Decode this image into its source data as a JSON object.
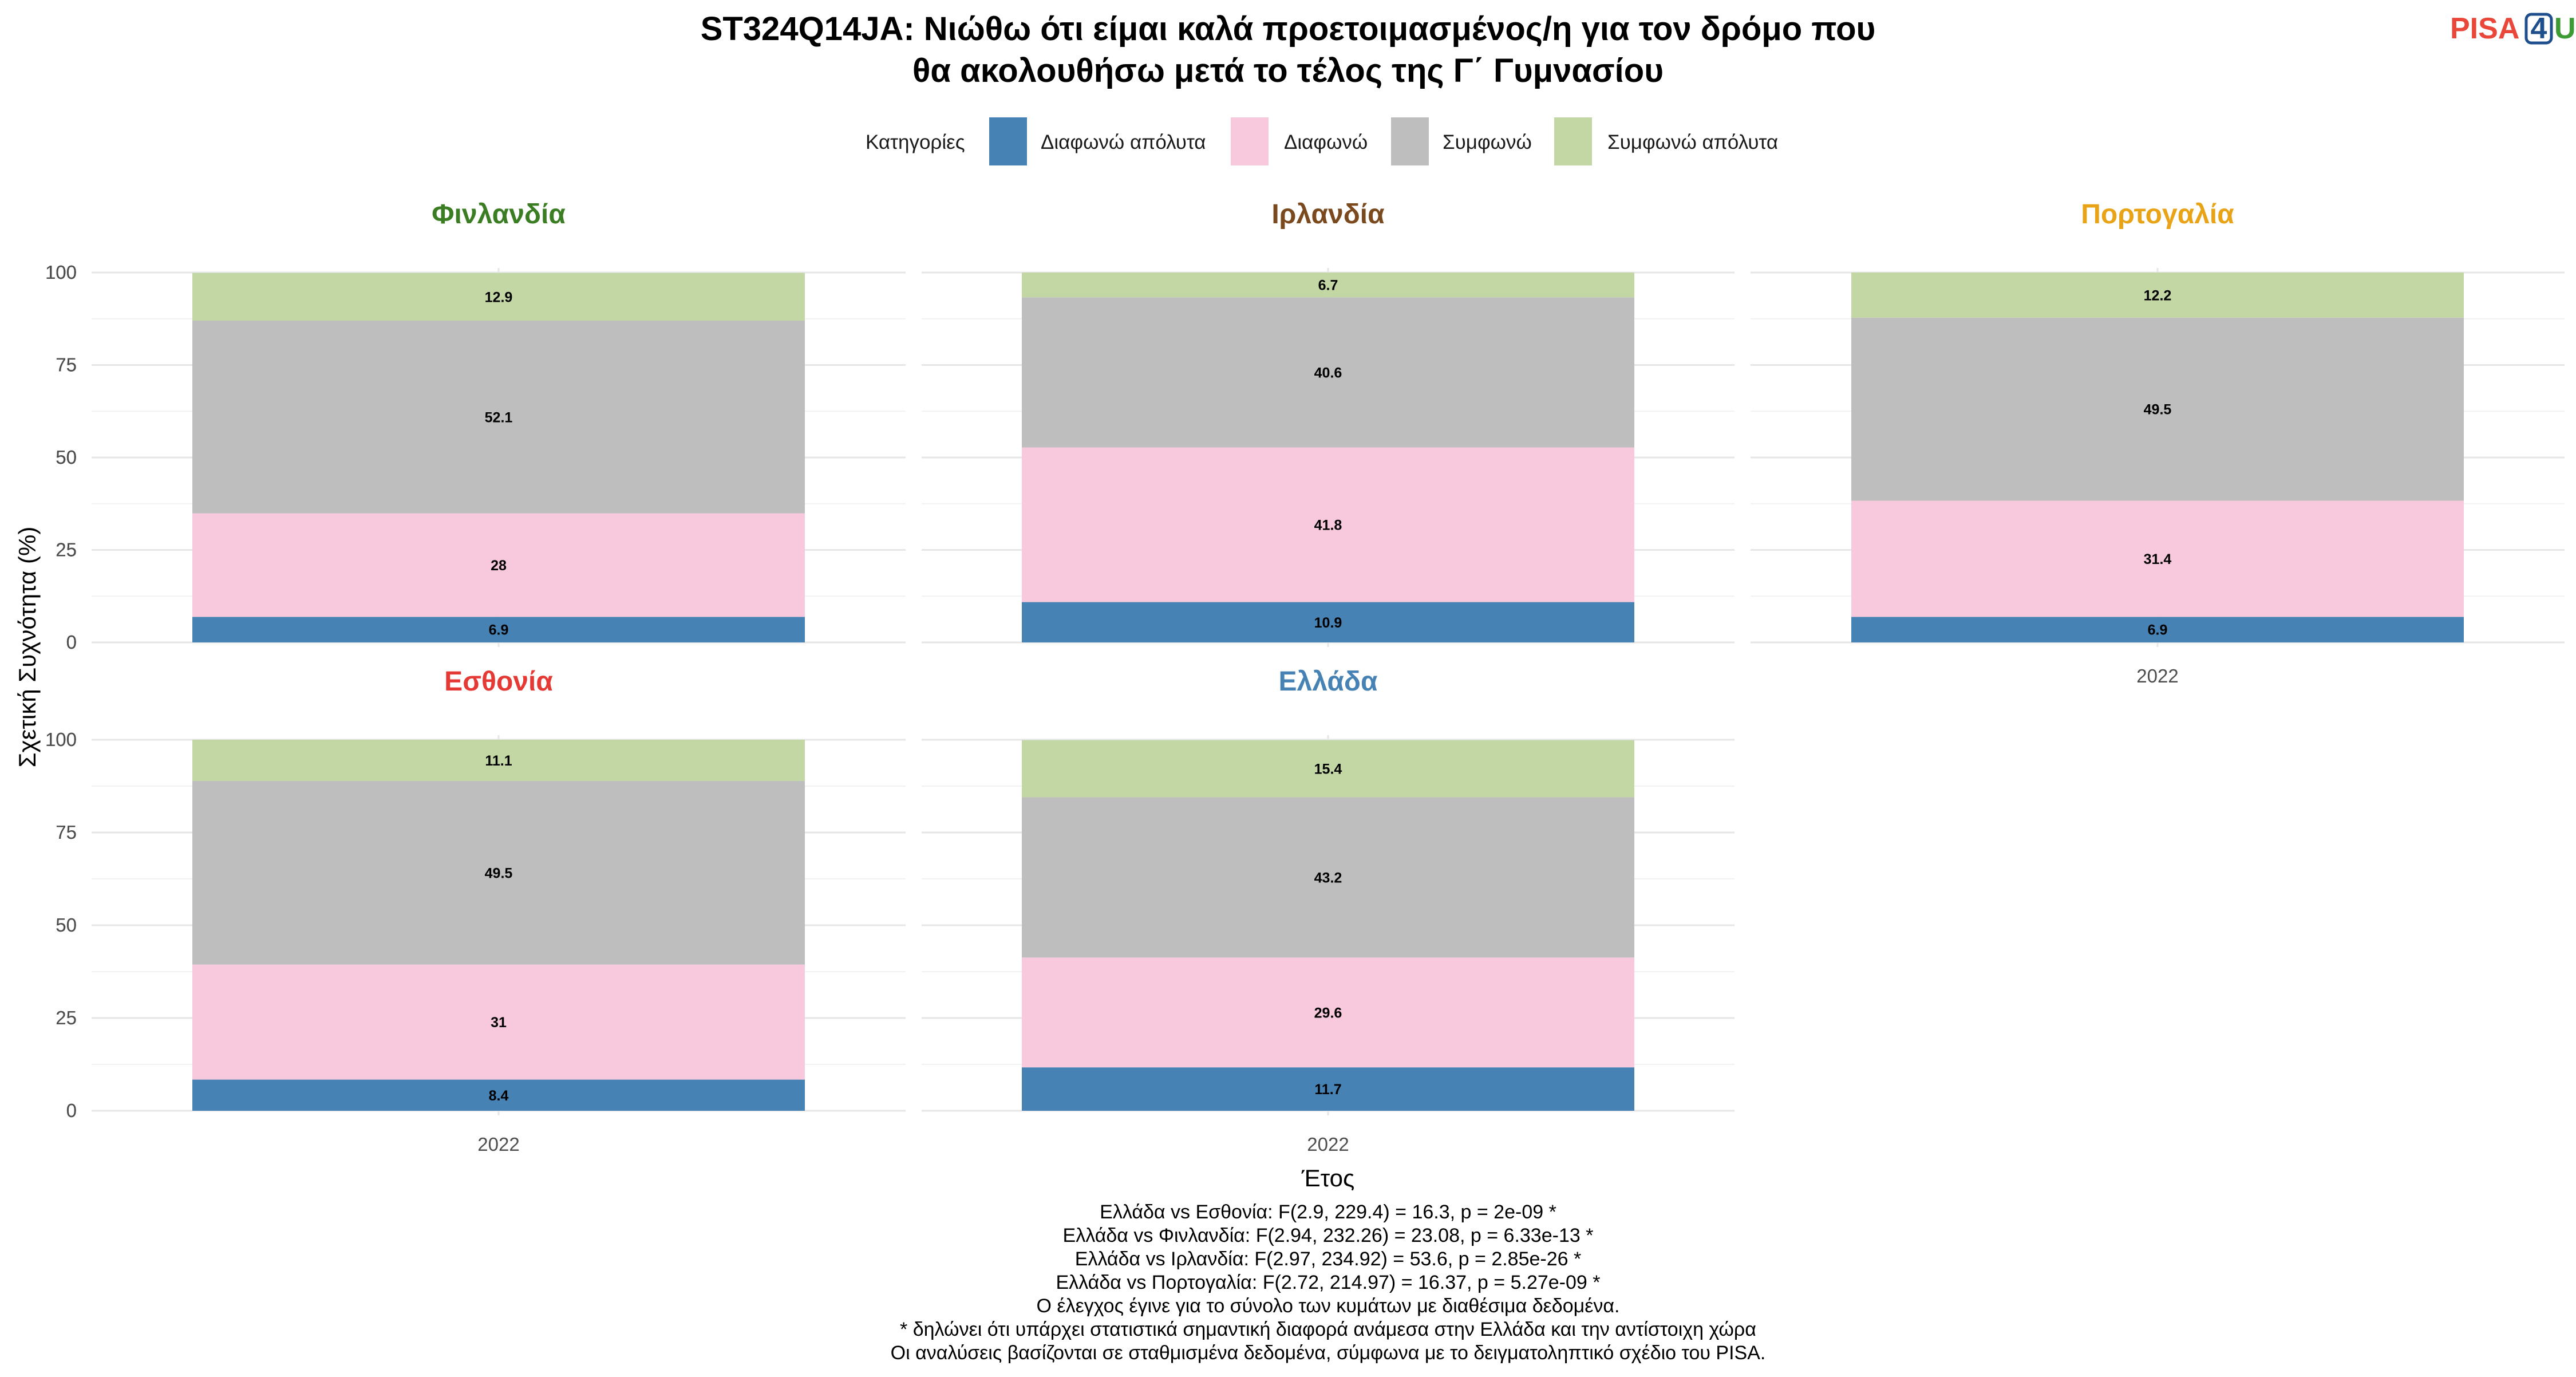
{
  "logo": {
    "part1": "PISA",
    "part2": "4",
    "part3": "U"
  },
  "colors": {
    "strongly_disagree": "#4682B4",
    "disagree": "#F8C8DC",
    "agree": "#BEBEBE",
    "strongly_agree": "#C2D7A4",
    "logo_red": "#E8473A",
    "logo_blue": "#1F4E8C",
    "logo_green": "#3D9B35"
  },
  "chart_data": {
    "type": "bar",
    "stacked": true,
    "title": "ST324Q14JA: Νιώθω ότι είμαι καλά προετοιμασμένος/η για τον δρόμο που θα ακολουθήσω μετά το τέλος της Γ΄ Γυμνασίου",
    "title_lines": [
      "ST324Q14JA: Νιώθω ότι είμαι καλά προετοιμασμένος/η για τον δρόμο που",
      "θα ακολουθήσω μετά το τέλος της Γ΄ Γυμνασίου"
    ],
    "legend_title": "Κατηγορίες",
    "legend_position": "top",
    "categories_order": [
      "Διαφωνώ απόλυτα",
      "Διαφωνώ",
      "Συμφωνώ",
      "Συμφωνώ απόλυτα"
    ],
    "xlabel": "Έτος",
    "ylabel": "Σχετική Συχνότητα (%)",
    "ylim": [
      0,
      100
    ],
    "yticks": [
      0,
      25,
      50,
      75,
      100
    ],
    "grid": true,
    "facets": [
      {
        "name": "Φινλανδία",
        "color": "#3A7D22",
        "x": "2022",
        "values": [
          6.9,
          28,
          52.1,
          12.9
        ],
        "labels": [
          "6.9",
          "28",
          "52.1",
          "12.9"
        ]
      },
      {
        "name": "Ιρλανδία",
        "color": "#7A4A1E",
        "x": "2022",
        "values": [
          10.9,
          41.8,
          40.6,
          6.7
        ],
        "labels": [
          "10.9",
          "41.8",
          "40.6",
          "6.7"
        ]
      },
      {
        "name": "Πορτογαλία",
        "color": "#E8A317",
        "x": "2022",
        "values": [
          6.9,
          31.4,
          49.5,
          12.2
        ],
        "labels": [
          "6.9",
          "31.4",
          "49.5",
          "12.2"
        ]
      },
      {
        "name": "Εσθονία",
        "color": "#E53935",
        "x": "2022",
        "values": [
          8.4,
          31,
          49.5,
          11.1
        ],
        "labels": [
          "8.4",
          "31",
          "49.5",
          "11.1"
        ]
      },
      {
        "name": "Ελλάδα",
        "color": "#4682B4",
        "x": "2022",
        "values": [
          11.7,
          29.6,
          43.2,
          15.4
        ],
        "labels": [
          "11.7",
          "29.6",
          "43.2",
          "15.4"
        ]
      }
    ],
    "caption": [
      "Ελλάδα vs Εσθονία: F(2.9, 229.4) = 16.3, p = 2e-09 *",
      "Ελλάδα vs Φινλανδία: F(2.94, 232.26) = 23.08, p = 6.33e-13 *",
      "Ελλάδα vs Ιρλανδία: F(2.97, 234.92) = 53.6, p = 2.85e-26 *",
      "Ελλάδα vs Πορτογαλία: F(2.72, 214.97) = 16.37, p = 5.27e-09 *",
      "Ο έλεγχος έγινε για το σύνολο των κυμάτων με διαθέσιμα δεδομένα.",
      "* δηλώνει ότι υπάρχει στατιστικά σημαντική διαφορά ανάμεσα στην Ελλάδα και την αντίστοιχη χώρα",
      "Οι αναλύσεις βασίζονται σε σταθμισμένα δεδομένα, σύμφωνα με το δειγματοληπτικό σχέδιο του PISA."
    ]
  }
}
